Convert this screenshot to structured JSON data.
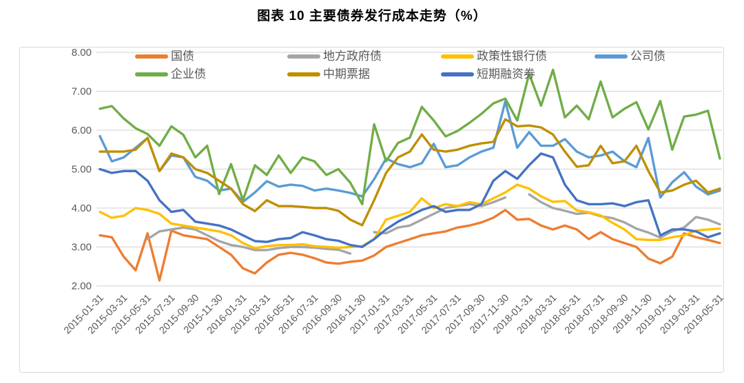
{
  "page": {
    "title": "图表 10 主要债券发行成本走势（%）"
  },
  "colors": {
    "grid": "#d9d9d9",
    "frame": "#d9d9d9",
    "axis_text": "#595959",
    "title_text": "#000000"
  },
  "chart_data": {
    "type": "line",
    "title": "图表 10 主要债券发行成本走势（%）",
    "x_unit": "month",
    "x_start": "2015-01",
    "x_end": "2019-05",
    "n_points": 53,
    "x_tick_every": 2,
    "x_tick_labels": [
      "2015-01-31",
      "2015-03-31",
      "2015-05-31",
      "2015-07-31",
      "2015-09-30",
      "2015-11-30",
      "2016-01-31",
      "2016-03-31",
      "2016-05-31",
      "2016-07-31",
      "2016-09-30",
      "2016-11-30",
      "2017-01-31",
      "2017-03-31",
      "2017-05-31",
      "2017-07-31",
      "2017-09-30",
      "2017-11-30",
      "2018-01-31",
      "2018-03-31",
      "2018-05-31",
      "2018-07-31",
      "2018-09-30",
      "2018-11-30",
      "2019-01-31",
      "2019-03-31",
      "2019-05-31"
    ],
    "ylim": [
      2,
      8
    ],
    "y_tick_labels": [
      "2.00",
      "3.00",
      "4.00",
      "5.00",
      "6.00",
      "7.00",
      "8.00"
    ],
    "grid": true,
    "legend_position": "top-inside-two-rows",
    "series": [
      {
        "id": "treasury",
        "name": "国债",
        "color": "#ED7D31",
        "values": [
          3.3,
          3.25,
          2.75,
          2.4,
          3.35,
          2.14,
          3.42,
          3.3,
          3.25,
          3.2,
          3.0,
          2.8,
          2.45,
          2.32,
          2.6,
          2.8,
          2.85,
          2.8,
          2.71,
          2.6,
          2.57,
          2.62,
          2.65,
          2.78,
          3.0,
          3.1,
          3.2,
          3.3,
          3.35,
          3.4,
          3.5,
          3.55,
          3.63,
          3.75,
          3.95,
          3.7,
          3.72,
          3.55,
          3.45,
          3.55,
          3.45,
          3.2,
          3.38,
          3.2,
          3.1,
          3.0,
          2.7,
          2.58,
          2.75,
          3.35,
          3.25,
          3.18,
          3.1
        ]
      },
      {
        "id": "local-government",
        "name": "地方政府债",
        "color": "#A5A5A5",
        "values": [
          null,
          null,
          null,
          null,
          3.2,
          3.4,
          3.45,
          3.5,
          3.45,
          3.3,
          3.15,
          3.05,
          3.0,
          2.92,
          2.92,
          2.97,
          3.0,
          3.0,
          2.98,
          2.95,
          2.93,
          2.83,
          null,
          3.38,
          3.35,
          3.5,
          3.55,
          3.7,
          3.85,
          4.0,
          4.05,
          4.1,
          4.05,
          4.15,
          4.27,
          null,
          4.35,
          4.15,
          4.0,
          3.93,
          3.85,
          3.88,
          3.79,
          3.74,
          3.63,
          3.47,
          3.37,
          3.24,
          3.4,
          3.5,
          3.77,
          3.7,
          3.58
        ]
      },
      {
        "id": "policy-bank",
        "name": "政策性银行债",
        "color": "#FFC000",
        "values": [
          3.9,
          3.75,
          3.8,
          4.0,
          3.95,
          3.85,
          3.6,
          3.55,
          3.5,
          3.45,
          3.4,
          3.3,
          3.1,
          2.97,
          3.02,
          3.05,
          3.05,
          3.07,
          3.02,
          3.0,
          2.98,
          3.0,
          3.02,
          3.2,
          3.7,
          3.8,
          3.9,
          4.25,
          4.0,
          4.1,
          4.05,
          4.15,
          4.1,
          4.25,
          4.4,
          4.6,
          4.5,
          4.3,
          4.16,
          4.18,
          3.94,
          3.89,
          3.81,
          3.62,
          3.45,
          3.2,
          3.18,
          3.18,
          3.25,
          3.3,
          3.42,
          3.45,
          3.47
        ]
      },
      {
        "id": "corporate",
        "name": "公司债",
        "color": "#5B9BD5",
        "values": [
          5.85,
          5.2,
          5.3,
          5.55,
          5.8,
          4.95,
          5.35,
          5.3,
          4.8,
          4.7,
          4.45,
          4.5,
          4.16,
          4.4,
          4.69,
          4.55,
          4.6,
          4.57,
          4.45,
          4.5,
          4.45,
          4.39,
          4.3,
          4.74,
          5.27,
          5.13,
          5.05,
          5.15,
          5.65,
          5.05,
          5.1,
          5.3,
          5.45,
          5.55,
          6.74,
          5.55,
          5.95,
          5.6,
          5.6,
          5.77,
          5.45,
          5.3,
          5.35,
          5.45,
          5.2,
          5.05,
          5.8,
          4.27,
          4.66,
          4.92,
          4.55,
          4.35,
          4.45
        ]
      },
      {
        "id": "enterprise",
        "name": "企业债",
        "color": "#70AD47",
        "values": [
          6.55,
          6.62,
          6.3,
          6.05,
          5.9,
          5.6,
          6.1,
          5.88,
          5.3,
          5.6,
          4.36,
          5.13,
          4.2,
          5.1,
          4.85,
          5.35,
          4.9,
          5.3,
          5.2,
          4.85,
          5.0,
          4.65,
          4.1,
          6.15,
          5.2,
          5.67,
          5.81,
          6.6,
          6.25,
          5.84,
          5.98,
          6.19,
          6.42,
          6.69,
          6.81,
          6.25,
          7.45,
          6.63,
          7.55,
          6.33,
          6.63,
          6.28,
          7.25,
          6.33,
          6.55,
          6.72,
          6.02,
          6.75,
          5.5,
          6.35,
          6.4,
          6.5,
          5.27
        ]
      },
      {
        "id": "mtn",
        "name": "中期票据",
        "color": "#BF8F00",
        "values": [
          5.45,
          5.45,
          5.45,
          5.5,
          5.8,
          4.95,
          5.4,
          5.3,
          5.0,
          4.9,
          4.7,
          4.5,
          4.1,
          3.92,
          4.2,
          4.05,
          4.05,
          4.03,
          4.0,
          4.0,
          3.93,
          3.7,
          3.56,
          4.2,
          4.9,
          5.3,
          5.45,
          5.89,
          5.5,
          5.45,
          5.5,
          5.6,
          5.66,
          5.7,
          6.28,
          6.1,
          6.12,
          6.07,
          5.89,
          5.45,
          5.06,
          5.1,
          5.6,
          5.15,
          5.2,
          5.6,
          4.95,
          4.4,
          4.45,
          4.6,
          4.7,
          4.4,
          4.5
        ]
      },
      {
        "id": "scp",
        "name": "短期融资券",
        "color": "#4472C4",
        "values": [
          5.0,
          4.9,
          4.95,
          4.95,
          4.7,
          4.2,
          3.9,
          3.95,
          3.65,
          3.6,
          3.55,
          3.45,
          3.3,
          3.15,
          3.13,
          3.2,
          3.23,
          3.38,
          3.3,
          3.2,
          3.16,
          3.05,
          3.0,
          3.2,
          3.45,
          3.65,
          3.8,
          3.95,
          4.05,
          3.9,
          3.95,
          3.95,
          4.1,
          4.7,
          4.95,
          4.75,
          5.1,
          5.4,
          5.3,
          4.6,
          4.2,
          4.1,
          4.1,
          4.12,
          4.05,
          4.15,
          4.2,
          3.3,
          3.45,
          3.45,
          3.4,
          3.25,
          3.35
        ]
      }
    ]
  }
}
